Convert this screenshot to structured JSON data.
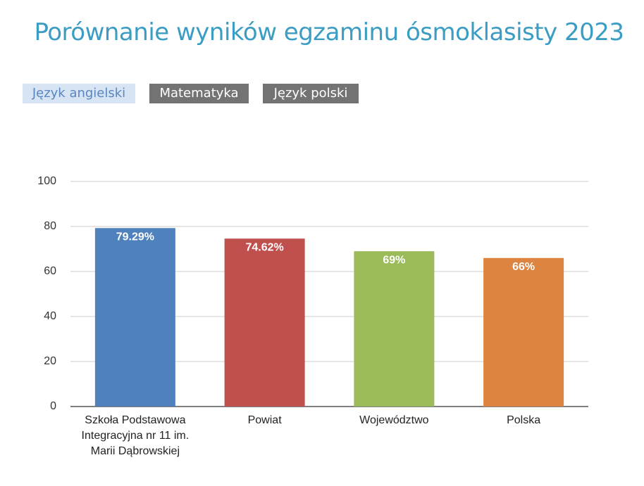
{
  "title": "Porównanie wyników egzaminu ósmoklasisty 2023",
  "tabs": [
    "Język angielski",
    "Matematyka",
    "Język polski"
  ],
  "chart_data": {
    "type": "bar",
    "categories": [
      "Szkoła Podstawowa Integracyjna nr 11 im. Marii Dąbrowskiej",
      "Powiat",
      "Województwo",
      "Polska"
    ],
    "values": [
      79.29,
      74.62,
      69,
      66
    ],
    "value_labels": [
      "79.29%",
      "74.62%",
      "69%",
      "66%"
    ],
    "colors": [
      "#4f81bd",
      "#c0504d",
      "#9bbb59",
      "#dd8440"
    ],
    "ylim": [
      0,
      100
    ],
    "yticks": [
      0,
      20,
      40,
      60,
      80,
      100
    ],
    "grid": true
  }
}
